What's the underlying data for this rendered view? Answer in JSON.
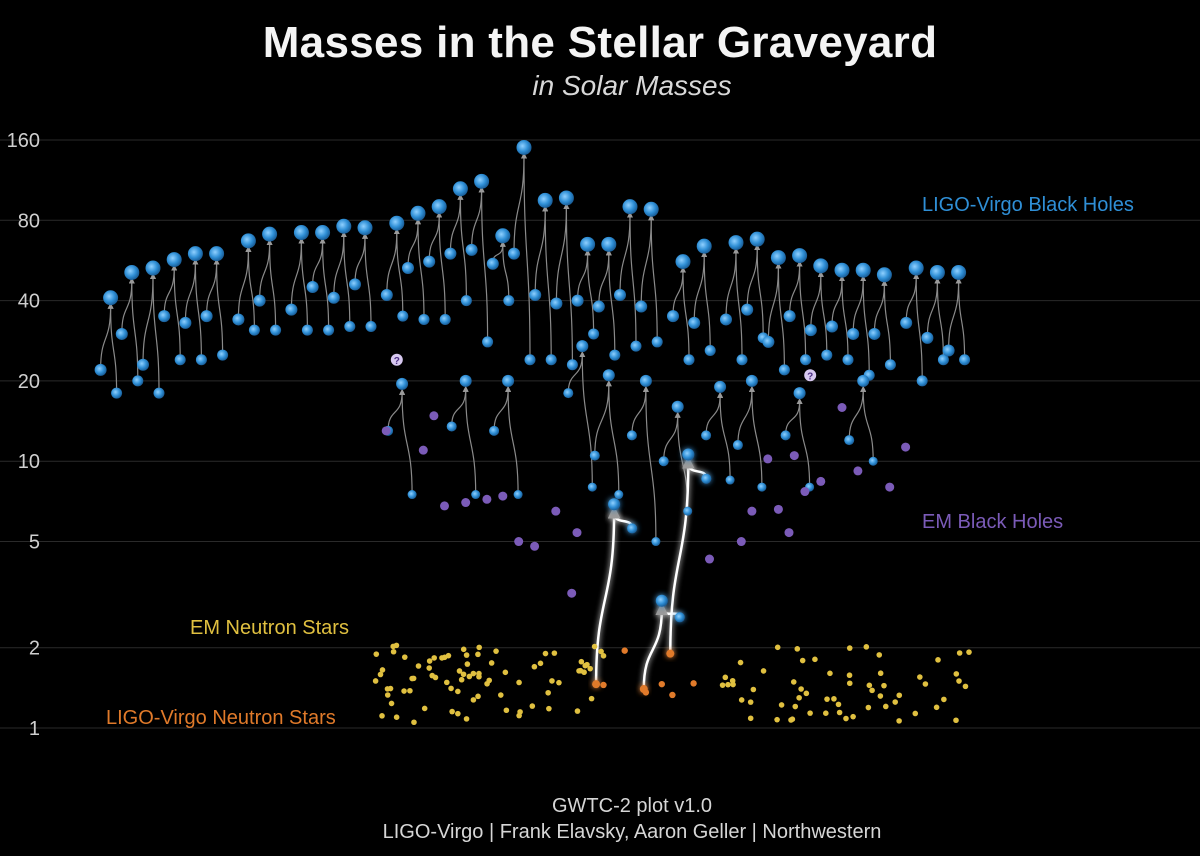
{
  "chart_data": {
    "type": "scatter",
    "title": "Masses in the Stellar Graveyard",
    "subtitle": "in Solar Masses",
    "y_scale": "log",
    "ylim": [
      0.85,
      190
    ],
    "y_ticks": [
      "160",
      "80",
      "40",
      "20",
      "10",
      "5",
      "2",
      "1"
    ],
    "y_tick_values": [
      160,
      80,
      40,
      20,
      10,
      5,
      2,
      1
    ],
    "grid": true,
    "series": [
      {
        "name": "LIGO-Virgo Black Holes",
        "color": "#2f8fd6"
      },
      {
        "name": "EM Black Holes",
        "color": "#7b5bb8"
      },
      {
        "name": "EM Neutron Stars",
        "color": "#e0c040"
      },
      {
        "name": "LIGO-Virgo Neutron Stars",
        "color": "#e07a2a"
      }
    ],
    "mergers": [
      {
        "x": 0.01,
        "m1": 22,
        "m2": 18,
        "f": 41
      },
      {
        "x": 0.03,
        "m1": 30,
        "m2": 20,
        "f": 51
      },
      {
        "x": 0.05,
        "m1": 23,
        "m2": 18,
        "f": 53
      },
      {
        "x": 0.07,
        "m1": 35,
        "m2": 24,
        "f": 57
      },
      {
        "x": 0.09,
        "m1": 33,
        "m2": 24,
        "f": 60
      },
      {
        "x": 0.11,
        "m1": 35,
        "m2": 25,
        "f": 60
      },
      {
        "x": 0.14,
        "m1": 34,
        "m2": 31,
        "f": 67
      },
      {
        "x": 0.16,
        "m1": 40,
        "m2": 31,
        "f": 71
      },
      {
        "x": 0.19,
        "m1": 37,
        "m2": 31,
        "f": 72
      },
      {
        "x": 0.21,
        "m1": 45,
        "m2": 31,
        "f": 72
      },
      {
        "x": 0.23,
        "m1": 41,
        "m2": 32,
        "f": 76
      },
      {
        "x": 0.25,
        "m1": 46,
        "m2": 32,
        "f": 75
      },
      {
        "x": 0.28,
        "m1": 42,
        "m2": 35,
        "f": 78
      },
      {
        "x": 0.3,
        "m1": 53,
        "m2": 34,
        "f": 85
      },
      {
        "x": 0.32,
        "m1": 56,
        "m2": 34,
        "f": 90
      },
      {
        "x": 0.34,
        "m1": 60,
        "m2": 40,
        "f": 105
      },
      {
        "x": 0.36,
        "m1": 62,
        "m2": 28,
        "f": 112
      },
      {
        "x": 0.38,
        "m1": 55,
        "m2": 40,
        "f": 70
      },
      {
        "x": 0.4,
        "m1": 60,
        "m2": 24,
        "f": 150
      },
      {
        "x": 0.42,
        "m1": 42,
        "m2": 24,
        "f": 95
      },
      {
        "x": 0.44,
        "m1": 39,
        "m2": 23,
        "f": 97
      },
      {
        "x": 0.46,
        "m1": 40,
        "m2": 30,
        "f": 65
      },
      {
        "x": 0.48,
        "m1": 38,
        "m2": 25,
        "f": 65
      },
      {
        "x": 0.5,
        "m1": 42,
        "m2": 27,
        "f": 90
      },
      {
        "x": 0.52,
        "m1": 38,
        "m2": 28,
        "f": 88
      },
      {
        "x": 0.55,
        "m1": 35,
        "m2": 24,
        "f": 56
      },
      {
        "x": 0.57,
        "m1": 33,
        "m2": 26,
        "f": 64
      },
      {
        "x": 0.6,
        "m1": 34,
        "m2": 24,
        "f": 66
      },
      {
        "x": 0.62,
        "m1": 37,
        "m2": 29,
        "f": 68
      },
      {
        "x": 0.64,
        "m1": 28,
        "m2": 22,
        "f": 58
      },
      {
        "x": 0.66,
        "m1": 35,
        "m2": 24,
        "f": 59
      },
      {
        "x": 0.68,
        "m1": 31,
        "m2": 25,
        "f": 54
      },
      {
        "x": 0.7,
        "m1": 32,
        "m2": 24,
        "f": 52
      },
      {
        "x": 0.72,
        "m1": 30,
        "m2": 21,
        "f": 52
      },
      {
        "x": 0.74,
        "m1": 30,
        "m2": 23,
        "f": 50
      },
      {
        "x": 0.77,
        "m1": 33,
        "m2": 20,
        "f": 53
      },
      {
        "x": 0.79,
        "m1": 29,
        "m2": 24,
        "f": 51
      },
      {
        "x": 0.81,
        "m1": 26,
        "m2": 24,
        "f": 51
      }
    ],
    "mid_mergers": [
      {
        "x": 0.285,
        "m1": 13.0,
        "m2": 7.5,
        "f": 19.5
      },
      {
        "x": 0.345,
        "m1": 13.5,
        "m2": 7.5,
        "f": 20
      },
      {
        "x": 0.385,
        "m1": 13.0,
        "m2": 7.5,
        "f": 20
      },
      {
        "x": 0.455,
        "m1": 18.0,
        "m2": 8.0,
        "f": 27
      },
      {
        "x": 0.48,
        "m1": 10.5,
        "m2": 7.5,
        "f": 21
      },
      {
        "x": 0.515,
        "m1": 12.5,
        "m2": 5.0,
        "f": 20
      },
      {
        "x": 0.545,
        "m1": 10.0,
        "m2": 6.5,
        "f": 16
      },
      {
        "x": 0.585,
        "m1": 12.5,
        "m2": 8.5,
        "f": 19
      },
      {
        "x": 0.615,
        "m1": 11.5,
        "m2": 8.0,
        "f": 20
      },
      {
        "x": 0.66,
        "m1": 12.5,
        "m2": 8.0,
        "f": 18
      },
      {
        "x": 0.72,
        "m1": 12.0,
        "m2": 10.0,
        "f": 20
      }
    ],
    "em_black_holes": [
      [
        0.27,
        13.0
      ],
      [
        0.305,
        11.0
      ],
      [
        0.315,
        14.8
      ],
      [
        0.325,
        6.8
      ],
      [
        0.345,
        7.0
      ],
      [
        0.365,
        7.2
      ],
      [
        0.38,
        7.4
      ],
      [
        0.395,
        5.0
      ],
      [
        0.41,
        4.8
      ],
      [
        0.43,
        6.5
      ],
      [
        0.445,
        3.2
      ],
      [
        0.45,
        5.4
      ],
      [
        0.575,
        4.3
      ],
      [
        0.605,
        5.0
      ],
      [
        0.615,
        6.5
      ],
      [
        0.63,
        10.2
      ],
      [
        0.64,
        6.6
      ],
      [
        0.65,
        5.4
      ],
      [
        0.655,
        10.5
      ],
      [
        0.665,
        7.7
      ],
      [
        0.68,
        8.4
      ],
      [
        0.7,
        15.9
      ],
      [
        0.715,
        9.2
      ],
      [
        0.745,
        8.0
      ],
      [
        0.76,
        11.3
      ]
    ],
    "em_neutron_stars_count": 140,
    "gw_neutron_stars": [
      [
        0.475,
        1.45
      ],
      [
        0.495,
        1.95
      ],
      [
        0.515,
        1.36
      ],
      [
        0.53,
        1.46
      ],
      [
        0.54,
        1.33
      ],
      [
        0.56,
        1.47
      ]
    ],
    "highlighted": [
      {
        "x": 0.485,
        "m1": 1.46,
        "m2": 5.6,
        "f": 6.9
      },
      {
        "x": 0.53,
        "m1": 1.4,
        "m2": 2.6,
        "f": 3.0
      },
      {
        "x": 0.555,
        "m1": 1.9,
        "m2": 8.6,
        "f": 10.6
      }
    ],
    "question_marks": [
      [
        0.28,
        24
      ],
      [
        0.67,
        21
      ]
    ],
    "annotations": {
      "ligo_bh": "LIGO-Virgo Black Holes",
      "em_bh": "EM Black Holes",
      "em_ns": "EM Neutron Stars",
      "ligo_ns": "LIGO-Virgo Neutron Stars"
    }
  },
  "footer": {
    "line1": "GWTC-2 plot v1.0",
    "line2": "LIGO-Virgo | Frank Elavsky, Aaron Geller | Northwestern"
  }
}
